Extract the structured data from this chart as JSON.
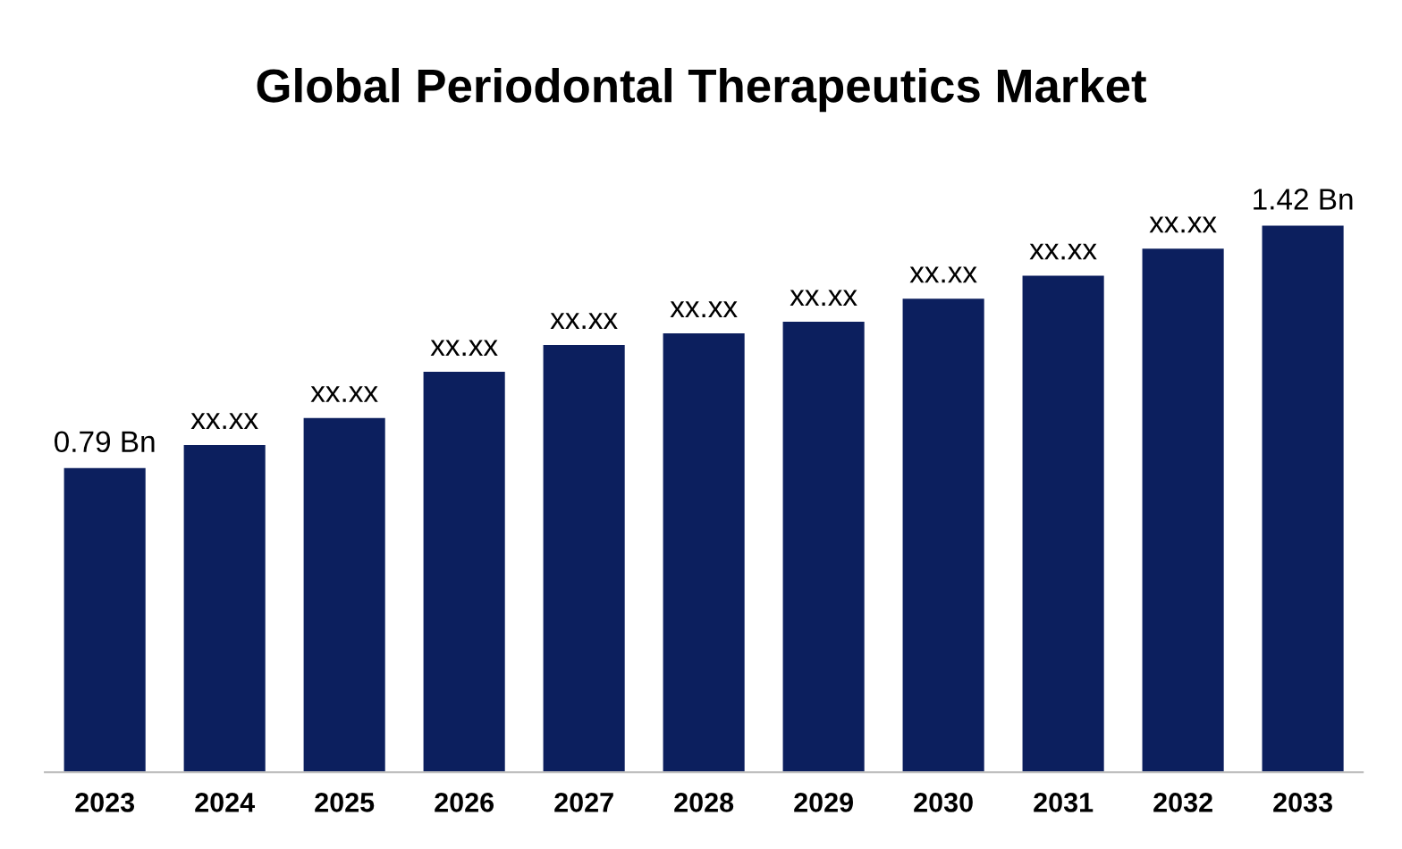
{
  "chart_data": {
    "type": "bar",
    "title": "Global Periodontal Therapeutics Market",
    "categories": [
      "2023",
      "2024",
      "2025",
      "2026",
      "2027",
      "2028",
      "2029",
      "2030",
      "2031",
      "2032",
      "2033"
    ],
    "values": [
      0.79,
      0.85,
      0.92,
      1.04,
      1.11,
      1.14,
      1.17,
      1.23,
      1.29,
      1.36,
      1.42
    ],
    "value_labels": [
      "0.79 Bn",
      "xx.xx",
      "xx.xx",
      "xx.xx",
      "xx.xx",
      "xx.xx",
      "xx.xx",
      "xx.xx",
      "xx.xx",
      "xx.xx",
      "1.42 Bn"
    ],
    "color": "#0c1f5e",
    "tick_labels": "x",
    "grid": false
  }
}
